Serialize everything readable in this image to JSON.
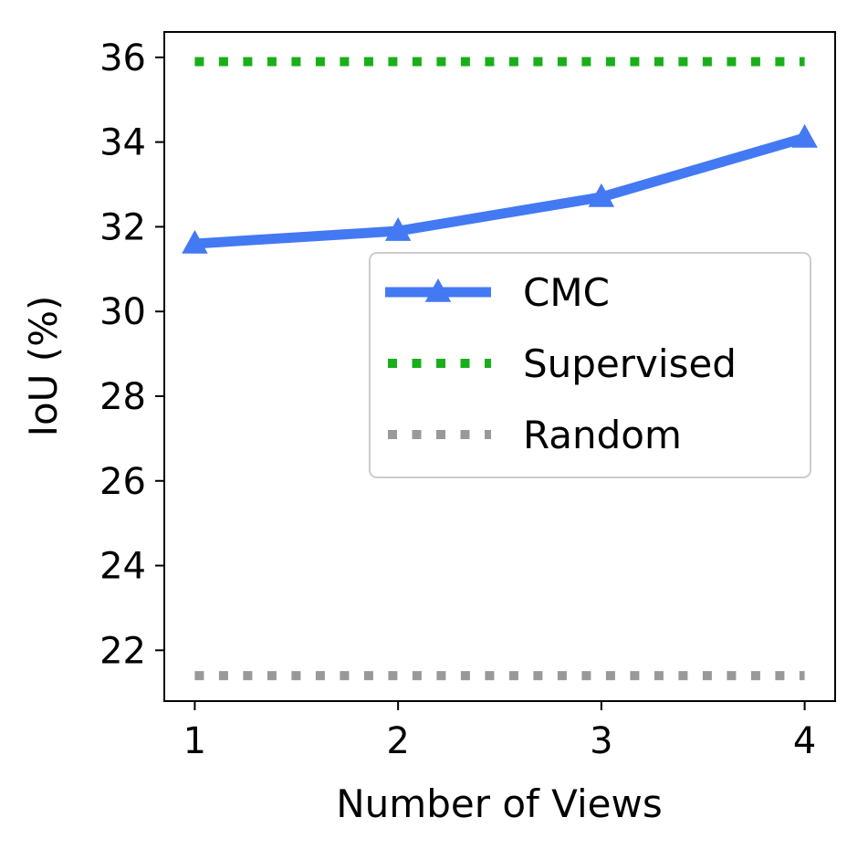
{
  "chart_data": {
    "type": "line",
    "title": "",
    "xlabel": "Number of Views",
    "ylabel": "IoU (%)",
    "x": [
      1,
      2,
      3,
      4
    ],
    "xlim": [
      0.85,
      4.15
    ],
    "ylim": [
      20.8,
      36.6
    ],
    "xticks": [
      1,
      2,
      3,
      4
    ],
    "yticks": [
      22,
      24,
      26,
      28,
      30,
      32,
      34,
      36
    ],
    "grid": false,
    "legend_position": "center-right",
    "series": [
      {
        "name": "CMC",
        "values": [
          31.6,
          31.9,
          32.7,
          34.1
        ],
        "color": "#4379f2",
        "style": "solid",
        "marker": "triangle"
      },
      {
        "name": "Supervised",
        "values": [
          35.9,
          35.9,
          35.9,
          35.9
        ],
        "color": "#1aaf1a",
        "style": "dotted",
        "marker": "none"
      },
      {
        "name": "Random",
        "values": [
          21.4,
          21.4,
          21.4,
          21.4
        ],
        "color": "#999999",
        "style": "dotted",
        "marker": "none"
      }
    ]
  }
}
